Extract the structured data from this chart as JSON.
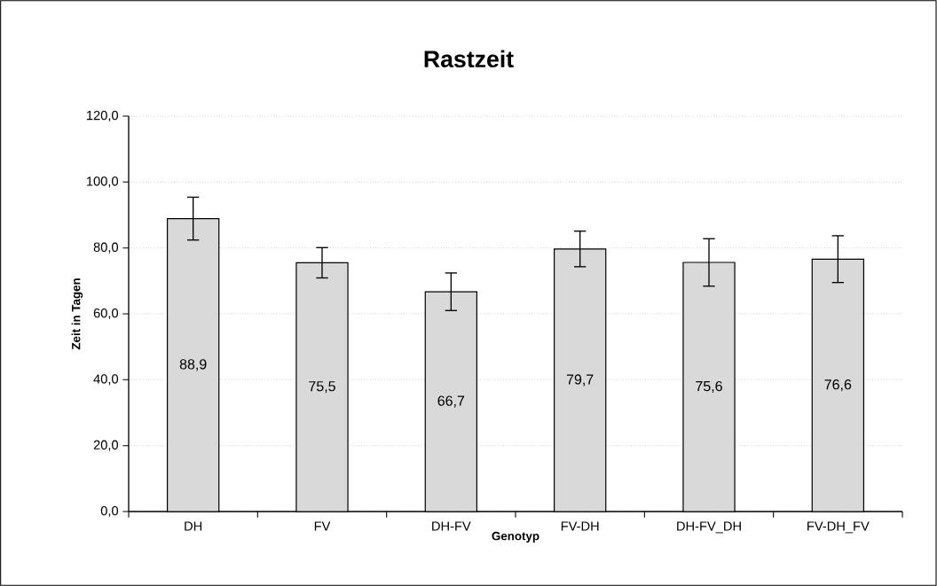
{
  "chart_data": {
    "type": "bar",
    "title": "Rastzeit",
    "xlabel": "Genotyp",
    "ylabel": "Zeit in Tagen",
    "categories": [
      "DH",
      "FV",
      "DH-FV",
      "FV-DH",
      "DH-FV_DH",
      "FV-DH_FV"
    ],
    "values": [
      88.9,
      75.5,
      66.7,
      79.7,
      75.6,
      76.6
    ],
    "value_labels": [
      "88,9",
      "75,5",
      "66,7",
      "79,7",
      "75,6",
      "76,6"
    ],
    "errors": [
      6.5,
      4.6,
      5.7,
      5.4,
      7.2,
      7.1
    ],
    "color": "#d9d9d9",
    "ylim": [
      0,
      120
    ],
    "yticks": [
      {
        "value": 0,
        "label": "0,0"
      },
      {
        "value": 20,
        "label": "20,0"
      },
      {
        "value": 40,
        "label": "40,0"
      },
      {
        "value": 60,
        "label": "60,0"
      },
      {
        "value": 80,
        "label": "80,0"
      },
      {
        "value": 100,
        "label": "100,0"
      },
      {
        "value": 120,
        "label": "120,0"
      }
    ],
    "grid": "y"
  }
}
